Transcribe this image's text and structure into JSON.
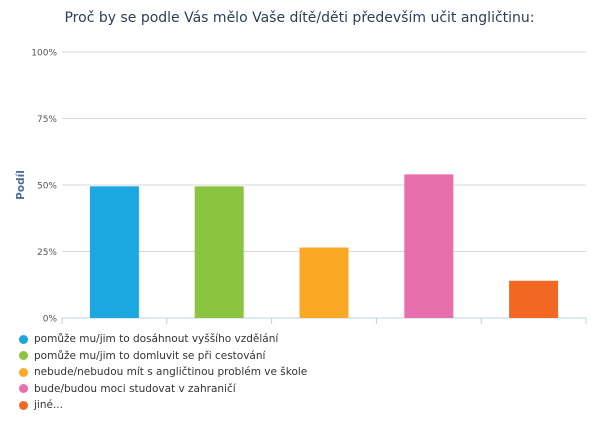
{
  "chart_data": {
    "type": "bar",
    "title": "Proč by se podle Vás mělo Vaše dítě/děti především učit angličtinu:",
    "xlabel": "",
    "ylabel": "Podíl",
    "ylim": [
      0,
      100
    ],
    "yticks": [
      0,
      25,
      50,
      75,
      100
    ],
    "ytick_labels": [
      "0%",
      "25%",
      "50%",
      "75%",
      "100%"
    ],
    "grid": true,
    "legend_position": "bottom-left",
    "categories": [
      "pomůže mu/jim to dosáhnout vyššího vzdělání",
      "pomůže mu/jim to domluvit se při cestování",
      "nebude/nebudou mít s angličtinou problém ve škole",
      "bude/budou moci studovat v zahraničí",
      "jiné..."
    ],
    "values": [
      49.5,
      49.5,
      26.5,
      54,
      14
    ],
    "colors": [
      "#1ba8e0",
      "#8bc540",
      "#fba924",
      "#e86eac",
      "#f26722"
    ]
  }
}
